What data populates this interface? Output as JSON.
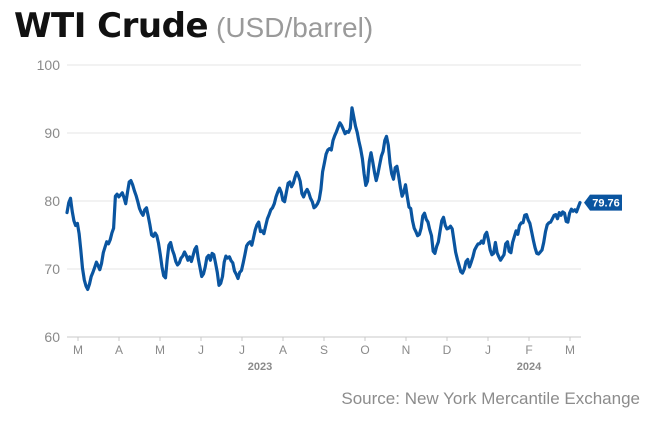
{
  "chart_data": {
    "type": "line",
    "title": "WTI Crude",
    "subtitle": "(USD/barrel)",
    "source": "Source: New York Mercantile Exchange",
    "ylim": [
      60,
      100
    ],
    "yticks": [
      "100",
      "90",
      "80",
      "70",
      "60"
    ],
    "ytick_values": [
      100,
      90,
      80,
      70,
      60
    ],
    "xticks": [
      "M",
      "A",
      "M",
      "J",
      "J",
      "A",
      "S",
      "O",
      "N",
      "D",
      "J",
      "F",
      "M"
    ],
    "year_labels": [
      "2023",
      "2024"
    ],
    "last_value_label": "79.76",
    "line_color": "#0a55a0",
    "series": [
      {
        "values": [
          78.3,
          79.7,
          80.4,
          78.5,
          77.1,
          76.4,
          76.7,
          75.2,
          72.8,
          70.1,
          68.4,
          67.5,
          67.0,
          67.8,
          68.9,
          69.5,
          70.2,
          71.0,
          70.5,
          69.9,
          70.8,
          72.4,
          73.2,
          74.0,
          73.7,
          74.3,
          75.3,
          76.0,
          80.7,
          81.0,
          80.6,
          80.9,
          81.2,
          80.5,
          79.6,
          81.3,
          82.8,
          83.0,
          82.4,
          81.5,
          80.8,
          79.9,
          78.9,
          78.3,
          77.9,
          78.7,
          79.0,
          77.8,
          76.5,
          75.0,
          74.8,
          75.3,
          74.9,
          73.8,
          72.1,
          70.3,
          69.0,
          68.7,
          71.4,
          73.5,
          73.9,
          72.8,
          72.1,
          71.1,
          70.6,
          70.9,
          71.6,
          71.9,
          72.5,
          72.0,
          71.3,
          71.8,
          71.1,
          72.0,
          72.9,
          73.3,
          71.5,
          70.2,
          68.9,
          69.3,
          70.3,
          71.7,
          72.0,
          71.3,
          72.3,
          72.1,
          70.9,
          69.5,
          67.6,
          67.9,
          68.9,
          71.0,
          71.9,
          71.6,
          71.8,
          71.2,
          70.9,
          69.7,
          69.2,
          68.6,
          69.5,
          69.8,
          70.9,
          72.1,
          73.4,
          73.8,
          74.0,
          73.5,
          74.6,
          75.8,
          76.5,
          76.9,
          75.5,
          75.6,
          75.2,
          76.3,
          77.4,
          78.0,
          78.7,
          79.0,
          79.6,
          80.6,
          81.3,
          81.9,
          81.3,
          80.1,
          79.9,
          81.3,
          82.6,
          82.8,
          82.1,
          82.6,
          83.5,
          84.2,
          83.7,
          82.9,
          81.1,
          80.6,
          81.3,
          81.7,
          81.2,
          80.4,
          79.9,
          79.0,
          79.2,
          79.6,
          80.2,
          81.7,
          84.3,
          85.6,
          86.9,
          87.5,
          87.7,
          87.5,
          88.9,
          89.6,
          90.2,
          90.9,
          91.5,
          91.1,
          90.5,
          89.9,
          90.2,
          90.1,
          90.7,
          93.7,
          92.4,
          91.0,
          90.1,
          88.8,
          87.7,
          86.2,
          84.0,
          82.3,
          82.9,
          85.8,
          87.1,
          85.8,
          84.2,
          83.0,
          84.0,
          85.3,
          86.6,
          87.3,
          88.9,
          89.5,
          88.2,
          85.6,
          84.0,
          83.2,
          84.9,
          85.1,
          83.7,
          82.0,
          80.7,
          81.3,
          82.4,
          80.6,
          79.1,
          78.9,
          77.1,
          76.0,
          75.5,
          74.9,
          75.1,
          76.0,
          77.8,
          78.2,
          77.3,
          76.9,
          75.8,
          74.9,
          72.6,
          72.3,
          73.3,
          74.0,
          75.6,
          77.1,
          77.6,
          76.4,
          75.9,
          76.0,
          76.3,
          75.9,
          74.2,
          72.5,
          71.4,
          70.5,
          69.6,
          69.4,
          70.0,
          71.1,
          71.4,
          70.3,
          71.0,
          71.8,
          72.8,
          73.3,
          73.7,
          73.7,
          74.1,
          73.8,
          75.0,
          75.4,
          74.2,
          72.8,
          72.1,
          72.3,
          73.9,
          72.4,
          71.8,
          71.3,
          71.7,
          72.1,
          73.7,
          74.0,
          72.6,
          72.4,
          73.9,
          74.8,
          75.6,
          75.1,
          76.4,
          76.8,
          76.8,
          77.9,
          78.0,
          77.2,
          76.7,
          75.5,
          74.2,
          73.1,
          72.3,
          72.2,
          72.5,
          72.8,
          73.9,
          75.5,
          76.5,
          76.8,
          76.9,
          77.4,
          77.9,
          78.0,
          77.4,
          78.3,
          77.9,
          78.4,
          78.2,
          77.0,
          76.9,
          78.2,
          78.8,
          78.5,
          78.7,
          78.4,
          79.1,
          79.76
        ]
      }
    ]
  }
}
